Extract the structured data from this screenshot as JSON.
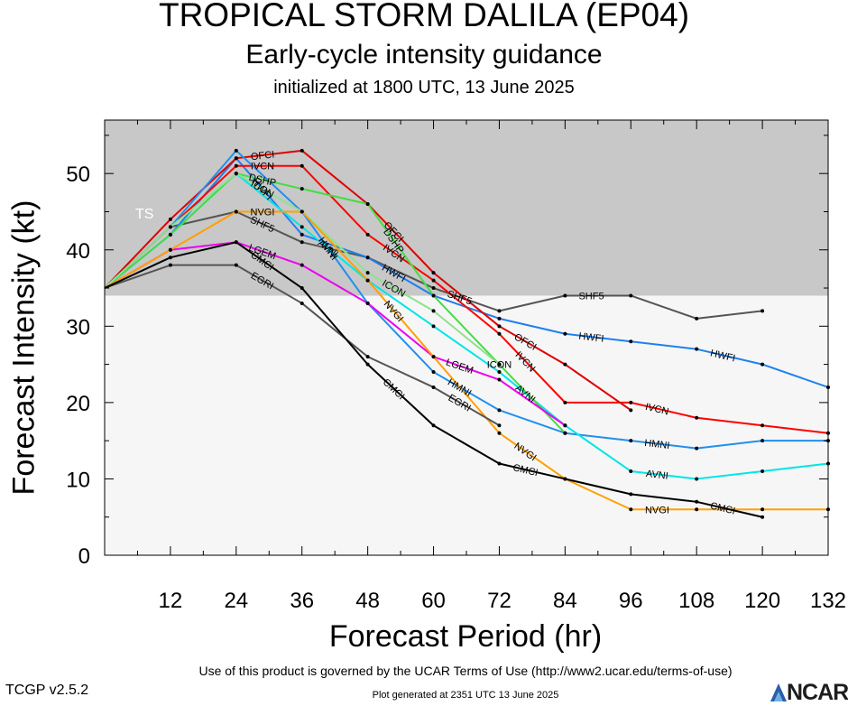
{
  "header": {
    "title": "TROPICAL STORM DALILA (EP04)",
    "subtitle": "Early-cycle intensity guidance",
    "init": "initialized at 1800 UTC, 13 June 2025"
  },
  "footer": {
    "terms": "Use of this product is governed by the UCAR Terms of Use (http://www2.ucar.edu/terms-of-use)",
    "version": "TCGP v2.5.2",
    "generated": "Plot generated at 2351 UTC   13 June 2025",
    "logo_text": "NCAR"
  },
  "chart_data": {
    "type": "line",
    "title": "TROPICAL STORM DALILA (EP04)",
    "subtitle": "Early-cycle intensity guidance",
    "xlabel": "Forecast Period (hr)",
    "ylabel": "Forecast Intensity (kt)",
    "xlim": [
      0,
      132
    ],
    "ylim": [
      0,
      57
    ],
    "xticks": [
      12,
      24,
      36,
      48,
      60,
      72,
      84,
      96,
      108,
      120,
      132
    ],
    "yticks": [
      0,
      10,
      20,
      30,
      40,
      50
    ],
    "band_label": "TS",
    "band_range": [
      34,
      57
    ],
    "colors": {
      "band": "#c8c8c8",
      "background": "#f6f6f6"
    },
    "series": [
      {
        "name": "SHF5",
        "color": "#555555",
        "x": [
          0,
          12,
          24,
          36,
          48,
          60,
          72,
          84,
          96,
          108,
          120
        ],
        "y": [
          35,
          43,
          45,
          41,
          39,
          35,
          32,
          34,
          34,
          31,
          32
        ],
        "label_x": [
          24,
          60,
          84
        ]
      },
      {
        "name": "HWFI",
        "color": "#1f7ff0",
        "x": [
          0,
          12,
          24,
          36,
          48,
          60,
          72,
          84,
          96,
          108,
          120,
          132
        ],
        "y": [
          35,
          42,
          52,
          42,
          39,
          34,
          31,
          29,
          28,
          27,
          25,
          22
        ],
        "label_x": [
          24,
          48,
          84,
          108
        ]
      },
      {
        "name": "IVCN",
        "color": "#ff0000",
        "x": [
          0,
          12,
          24,
          36,
          48,
          60,
          72,
          84,
          96,
          108,
          120,
          132
        ],
        "y": [
          35,
          43,
          51,
          51,
          42,
          36,
          29,
          20,
          20,
          18,
          17,
          16
        ],
        "label_x": [
          24,
          48,
          72,
          96
        ]
      },
      {
        "name": "OFCI",
        "color": "#e00000",
        "x": [
          0,
          12,
          24,
          36,
          48,
          60,
          72,
          84,
          96
        ],
        "y": [
          35,
          44,
          52,
          53,
          46,
          37,
          30,
          25,
          19
        ],
        "label_x": [
          24,
          48,
          72
        ]
      },
      {
        "name": "HMNI",
        "color": "#2090ee",
        "x": [
          0,
          12,
          24,
          36,
          48,
          60,
          72,
          84,
          96,
          108,
          120,
          132
        ],
        "y": [
          35,
          43,
          53,
          45,
          33,
          24,
          19,
          16,
          15,
          14,
          15,
          15
        ],
        "label_x": [
          36,
          60,
          96
        ]
      },
      {
        "name": "AVNI",
        "color": "#00e5e5",
        "x": [
          0,
          12,
          24,
          36,
          48,
          60,
          72,
          84,
          96,
          108,
          120,
          132
        ],
        "y": [
          35,
          42,
          50,
          43,
          36,
          30,
          24,
          17,
          11,
          10,
          11,
          12
        ],
        "label_x": [
          36,
          72,
          96
        ]
      },
      {
        "name": "DSHP",
        "color": "#44dd44",
        "x": [
          0,
          12,
          24,
          36,
          48,
          60,
          72,
          84
        ],
        "y": [
          35,
          42,
          50,
          48,
          46,
          34,
          25,
          16
        ],
        "label_x": [
          24,
          48
        ]
      },
      {
        "name": "LGEM",
        "color": "#ee00ee",
        "x": [
          0,
          12,
          24,
          36,
          48,
          60,
          72,
          84
        ],
        "y": [
          35,
          40,
          41,
          38,
          33,
          26,
          23,
          17
        ],
        "label_x": [
          24,
          60
        ]
      },
      {
        "name": "ICON",
        "color": "#90e090",
        "x": [
          0,
          12,
          24,
          36,
          48,
          60,
          72
        ],
        "y": [
          35,
          43,
          50,
          45,
          37,
          32,
          25
        ],
        "label_x": [
          24,
          48,
          72
        ]
      },
      {
        "name": "NVGI",
        "color": "#ffa000",
        "x": [
          0,
          12,
          24,
          36,
          48,
          60,
          72,
          84,
          96,
          108,
          120,
          132
        ],
        "y": [
          35,
          40,
          45,
          45,
          36,
          26,
          16,
          10,
          6,
          6,
          6,
          6
        ],
        "label_x": [
          24,
          48,
          72,
          96
        ]
      },
      {
        "name": "EGRI",
        "color": "#555555",
        "x": [
          0,
          12,
          24,
          36,
          48,
          60,
          72
        ],
        "y": [
          35,
          38,
          38,
          33,
          26,
          22,
          17
        ],
        "label_x": [
          24,
          60
        ]
      },
      {
        "name": "CMCI",
        "color": "#000000",
        "x": [
          0,
          12,
          24,
          36,
          48,
          60,
          72,
          84,
          96,
          108,
          120
        ],
        "y": [
          35,
          39,
          41,
          35,
          25,
          17,
          12,
          10,
          8,
          7,
          5
        ],
        "label_x": [
          24,
          48,
          72,
          108
        ]
      }
    ]
  }
}
